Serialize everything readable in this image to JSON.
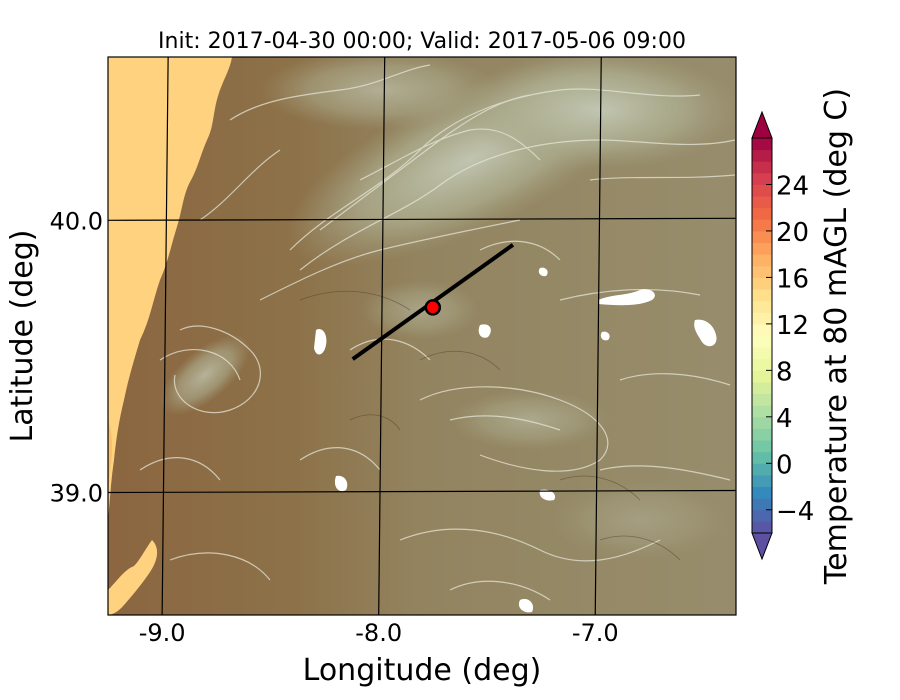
{
  "chart_data": {
    "type": "heatmap",
    "title": "Init: 2017-04-30 00:00; Valid: 2017-05-06 09:00",
    "xlabel": "Longitude (deg)",
    "ylabel": "Latitude (deg)",
    "xlim": [
      -9.25,
      -6.35
    ],
    "ylim": [
      38.55,
      40.6
    ],
    "x_ticks": [
      {
        "value": -9.0,
        "label": "-9.0"
      },
      {
        "value": -8.0,
        "label": "-8.0"
      },
      {
        "value": -7.0,
        "label": "-7.0"
      }
    ],
    "y_ticks": [
      {
        "value": 40.0,
        "label": "40.0"
      },
      {
        "value": 39.0,
        "label": "39.0"
      }
    ],
    "graticule_lons": [
      -9.0,
      -8.0,
      -7.0
    ],
    "graticule_lats": [
      39.0,
      40.0
    ],
    "cross_section": {
      "start": [
        -8.12,
        39.49
      ],
      "end": [
        -7.38,
        39.91
      ],
      "color": "#000000"
    },
    "point": {
      "lon": -7.75,
      "lat": 39.68,
      "color": "#ff0000"
    },
    "colorbar": {
      "label": "Temperature at 80 mAGL (deg C)",
      "min": -6,
      "max": 28,
      "extend": "both",
      "ticks": [
        {
          "value": -4,
          "label": "−4"
        },
        {
          "value": 0,
          "label": "0"
        },
        {
          "value": 4,
          "label": "4"
        },
        {
          "value": 8,
          "label": "8"
        },
        {
          "value": 12,
          "label": "12"
        },
        {
          "value": 16,
          "label": "16"
        },
        {
          "value": 20,
          "label": "20"
        },
        {
          "value": 24,
          "label": "24"
        }
      ],
      "colormap": [
        "#5e4fa2",
        "#3288bd",
        "#66c2a5",
        "#abdda4",
        "#e6f598",
        "#ffffbf",
        "#fee08b",
        "#fdae61",
        "#f46d43",
        "#d53e4f",
        "#9e0142"
      ]
    },
    "grid": true,
    "colors": {
      "ocean": "#ffd27f",
      "coastal_land": "#8b6640",
      "inland_land": "#968a68",
      "highlands": "#aaa584",
      "contour": "#e6e6d8"
    }
  }
}
